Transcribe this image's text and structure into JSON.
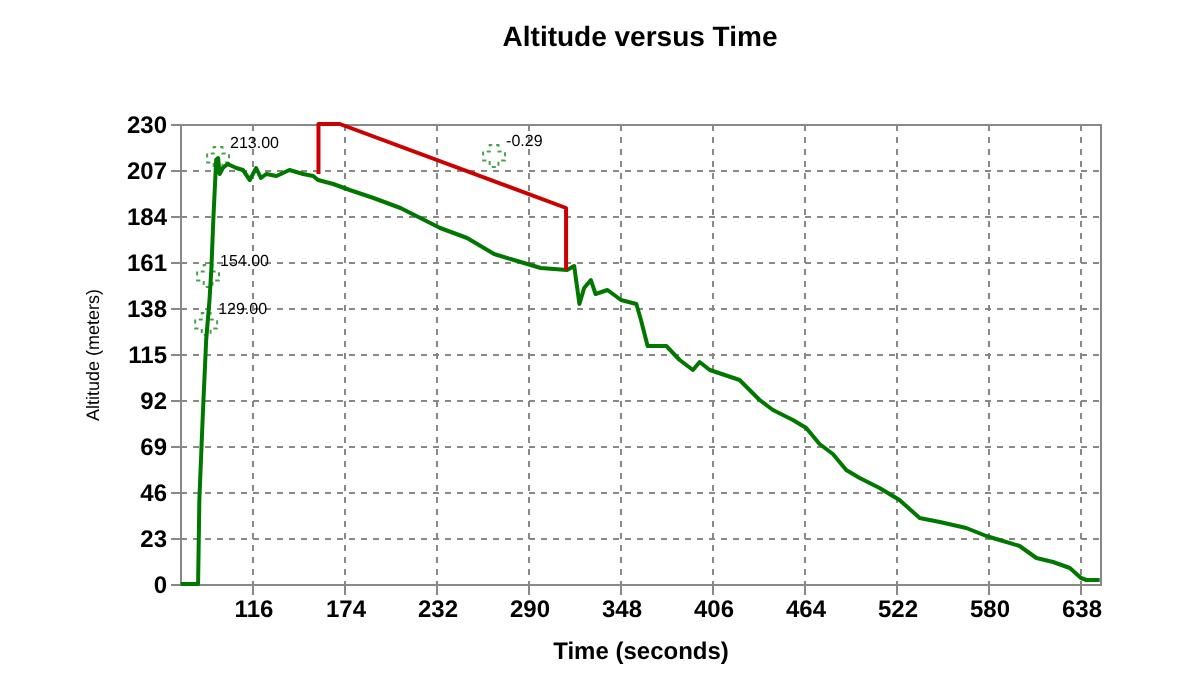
{
  "chart_data": {
    "type": "line",
    "title": "Altitude versus Time",
    "xlabel": "Time (seconds)",
    "ylabel": "Altitude (meters)",
    "xlim": [
      70,
      650
    ],
    "xticks": [
      116,
      174,
      232,
      290,
      348,
      406,
      464,
      522,
      580,
      638
    ],
    "ylim": [
      0,
      230
    ],
    "yticks": [
      0,
      23,
      46,
      69,
      92,
      115,
      138,
      161,
      184,
      207,
      230
    ],
    "grid": true,
    "line_style": "solid",
    "marker": "none",
    "series": [
      {
        "color": "#007800",
        "x": [
          70.4,
          81.4,
          82.2,
          84.4,
          86.5,
          88.6,
          89.8,
          91,
          92.8,
          94,
          95,
          97,
          100,
          105.5,
          109.7,
          114,
          118,
          121,
          124.4,
          130.8,
          139,
          147.6,
          154,
          157,
          166.6,
          177,
          192,
          209,
          221.5,
          234,
          251,
          268,
          280.5,
          297.4,
          314,
          318.5,
          321.8,
          324.8,
          329,
          332,
          339.5,
          348,
          357.7,
          360.6,
          364.8,
          376.6,
          385,
          393.4,
          397.6,
          404,
          422.8,
          435.4,
          443.8,
          456.4,
          464.8,
          473.2,
          481.6,
          490,
          498.5,
          511,
          523.6,
          536.3,
          549,
          565.7,
          578.3,
          586.7,
          599.3,
          609.9,
          620.4,
          631,
          638,
          641.4,
          649.8
        ],
        "values": [
          0,
          0,
          42,
          85,
          122,
          142,
          158,
          182,
          212,
          213,
          205,
          208,
          210,
          208,
          207,
          202,
          208,
          203,
          205,
          204,
          207,
          205,
          204,
          202,
          200,
          197,
          193,
          188,
          183,
          178,
          173,
          165,
          162,
          158,
          157,
          159,
          140,
          148,
          152,
          145,
          147,
          142,
          140,
          132,
          119,
          119,
          112,
          107,
          111,
          107,
          102,
          92,
          87,
          82,
          78,
          70,
          65,
          57,
          53,
          48,
          42,
          33,
          31,
          28,
          24,
          22,
          19,
          13,
          11,
          8,
          3,
          2,
          2
        ]
      },
      {
        "type": "line",
        "color": "#cc0000",
        "x": [
          157.3,
          157.3,
          170.8,
          313.4,
          313.4
        ],
        "values": [
          205,
          230,
          230,
          188,
          157
        ]
      }
    ],
    "annotations": [
      {
        "text": "213.00",
        "x": 94,
        "y": 213
      },
      {
        "text": "154.00",
        "x": 87.7,
        "y": 154
      },
      {
        "text": "129.00",
        "x": 86.5,
        "y": 130
      },
      {
        "text": "-0.29",
        "x": 268,
        "y": 214
      }
    ]
  }
}
